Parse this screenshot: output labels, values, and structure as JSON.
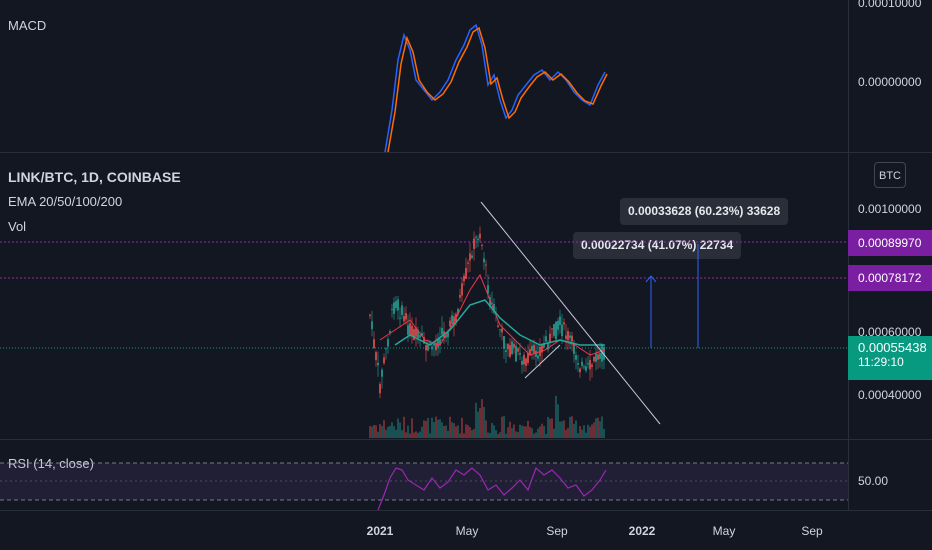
{
  "macd": {
    "label": "MACD",
    "axis_ticks": [
      "0.00010000",
      "0.00000000"
    ]
  },
  "main": {
    "symbol": "LINK/BTC, 1D, COINBASE",
    "indicator": "EMA 20/50/100/200",
    "volume_label": "Vol",
    "currency_button": "BTC",
    "axis_ticks": [
      "0.00100000",
      "0.00060000",
      "0.00040000"
    ],
    "tags": {
      "upper_level": "0.00089970",
      "lower_level": "0.00078172",
      "last_price": "0.00055438",
      "countdown": "11:29:10"
    },
    "callouts": {
      "upper": "0.00033628 (60.23%) 33628",
      "lower": "0.00022734 (41.07%) 22734"
    }
  },
  "rsi": {
    "label": "RSI (14, close)",
    "axis_tick": "50.00"
  },
  "time_axis": [
    "2021",
    "May",
    "Sep",
    "2022",
    "May",
    "Sep"
  ],
  "colors": {
    "background": "#131722",
    "purple_tag": "#7b1fa2",
    "green_tag": "#089981",
    "macd_line": "#2962ff",
    "signal_line": "#ff6d00",
    "rsi_line": "#9c27b0",
    "trendline": "#c8c8d8"
  }
}
